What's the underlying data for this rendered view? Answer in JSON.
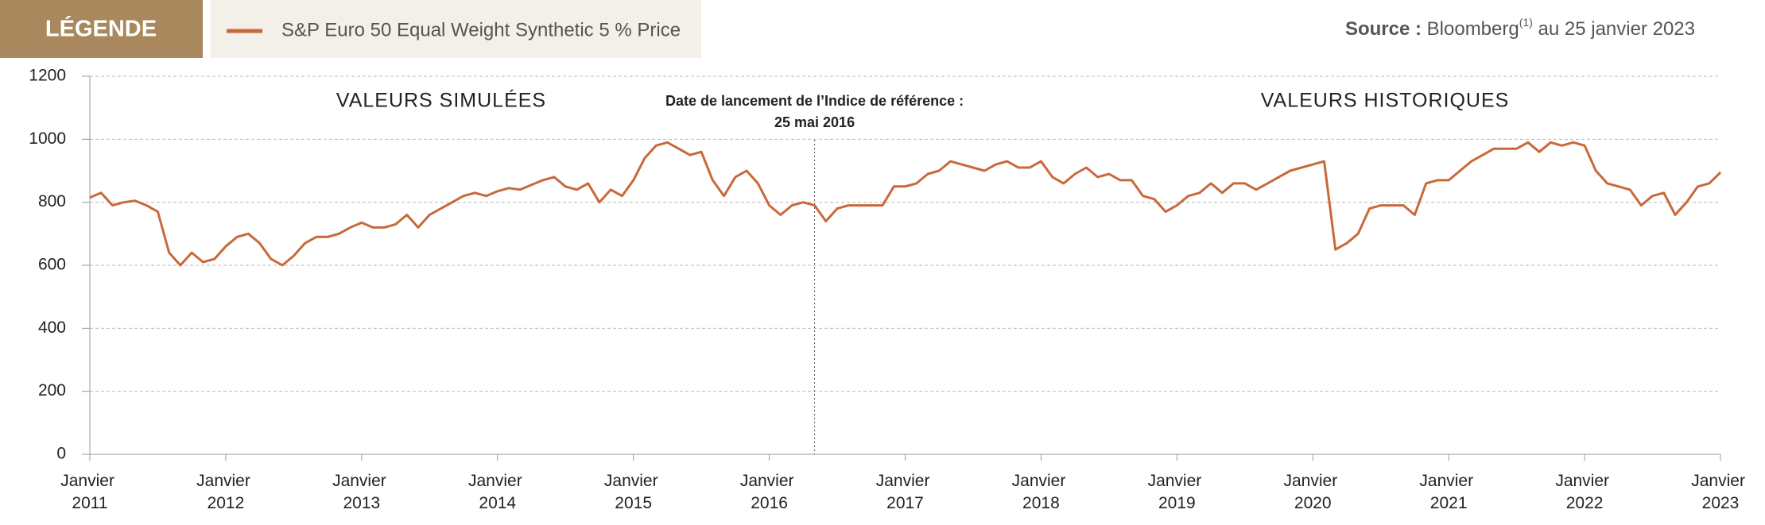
{
  "legend_label": "LÉGENDE",
  "source": {
    "label": "Source :",
    "text": "Bloomberg",
    "note": "(1)",
    "date": "au 25 janvier 2023"
  },
  "chart_data": {
    "type": "line",
    "annotations": {
      "left": "VALEURS SIMULÉES",
      "launch_1": "Date de lancement de l’Indice de référence :",
      "launch_2": "25 mai 2016",
      "right": "VALEURS HISTORIQUES"
    },
    "launch_date": "2016-05",
    "x": [
      "2011-01",
      "2011-02",
      "2011-03",
      "2011-04",
      "2011-05",
      "2011-06",
      "2011-07",
      "2011-08",
      "2011-09",
      "2011-10",
      "2011-11",
      "2011-12",
      "2012-01",
      "2012-02",
      "2012-03",
      "2012-04",
      "2012-05",
      "2012-06",
      "2012-07",
      "2012-08",
      "2012-09",
      "2012-10",
      "2012-11",
      "2012-12",
      "2013-01",
      "2013-02",
      "2013-03",
      "2013-04",
      "2013-05",
      "2013-06",
      "2013-07",
      "2013-08",
      "2013-09",
      "2013-10",
      "2013-11",
      "2013-12",
      "2014-01",
      "2014-02",
      "2014-03",
      "2014-04",
      "2014-05",
      "2014-06",
      "2014-07",
      "2014-08",
      "2014-09",
      "2014-10",
      "2014-11",
      "2014-12",
      "2015-01",
      "2015-02",
      "2015-03",
      "2015-04",
      "2015-05",
      "2015-06",
      "2015-07",
      "2015-08",
      "2015-09",
      "2015-10",
      "2015-11",
      "2015-12",
      "2016-01",
      "2016-02",
      "2016-03",
      "2016-04",
      "2016-05",
      "2016-06",
      "2016-07",
      "2016-08",
      "2016-09",
      "2016-10",
      "2016-11",
      "2016-12",
      "2017-01",
      "2017-02",
      "2017-03",
      "2017-04",
      "2017-05",
      "2017-06",
      "2017-07",
      "2017-08",
      "2017-09",
      "2017-10",
      "2017-11",
      "2017-12",
      "2018-01",
      "2018-02",
      "2018-03",
      "2018-04",
      "2018-05",
      "2018-06",
      "2018-07",
      "2018-08",
      "2018-09",
      "2018-10",
      "2018-11",
      "2018-12",
      "2019-01",
      "2019-02",
      "2019-03",
      "2019-04",
      "2019-05",
      "2019-06",
      "2019-07",
      "2019-08",
      "2019-09",
      "2019-10",
      "2019-11",
      "2019-12",
      "2020-01",
      "2020-02",
      "2020-03",
      "2020-04",
      "2020-05",
      "2020-06",
      "2020-07",
      "2020-08",
      "2020-09",
      "2020-10",
      "2020-11",
      "2020-12",
      "2021-01",
      "2021-02",
      "2021-03",
      "2021-04",
      "2021-05",
      "2021-06",
      "2021-07",
      "2021-08",
      "2021-09",
      "2021-10",
      "2021-11",
      "2021-12",
      "2022-01",
      "2022-02",
      "2022-03",
      "2022-04",
      "2022-05",
      "2022-06",
      "2022-07",
      "2022-08",
      "2022-09",
      "2022-10",
      "2022-11",
      "2022-12",
      "2023-01"
    ],
    "series": [
      {
        "name": "S&P Euro 50 Equal Weight Synthetic 5 % Price",
        "color": "#c8693a",
        "values": [
          815,
          830,
          790,
          800,
          805,
          790,
          770,
          640,
          600,
          640,
          610,
          620,
          660,
          690,
          700,
          670,
          620,
          600,
          630,
          670,
          690,
          690,
          700,
          720,
          735,
          720,
          720,
          730,
          760,
          720,
          760,
          780,
          800,
          820,
          830,
          820,
          835,
          845,
          840,
          855,
          870,
          880,
          850,
          840,
          860,
          800,
          840,
          820,
          870,
          940,
          980,
          990,
          970,
          950,
          960,
          870,
          820,
          880,
          900,
          860,
          790,
          760,
          790,
          800,
          790,
          740,
          780,
          790,
          790,
          790,
          790,
          850,
          850,
          860,
          890,
          900,
          930,
          920,
          910,
          900,
          920,
          930,
          910,
          910,
          930,
          880,
          860,
          890,
          910,
          880,
          890,
          870,
          870,
          820,
          810,
          770,
          790,
          820,
          830,
          860,
          830,
          860,
          860,
          840,
          860,
          880,
          900,
          910,
          920,
          930,
          650,
          670,
          700,
          780,
          790,
          790,
          790,
          760,
          860,
          870,
          870,
          900,
          930,
          950,
          970,
          970,
          970,
          990,
          960,
          990,
          980,
          990,
          980,
          900,
          860,
          850,
          840,
          790,
          820,
          830,
          760,
          800,
          850,
          860,
          895
        ]
      }
    ],
    "xlim": [
      "2011-01",
      "2023-01"
    ],
    "xticks": [
      {
        "value": "2011-01",
        "label": "Janvier 2011"
      },
      {
        "value": "2012-01",
        "label": "Janvier 2012"
      },
      {
        "value": "2013-01",
        "label": "Janvier 2013"
      },
      {
        "value": "2014-01",
        "label": "Janvier 2014"
      },
      {
        "value": "2015-01",
        "label": "Janvier 2015"
      },
      {
        "value": "2016-01",
        "label": "Janvier 2016"
      },
      {
        "value": "2017-01",
        "label": "Janvier 2017"
      },
      {
        "value": "2018-01",
        "label": "Janvier 2018"
      },
      {
        "value": "2019-01",
        "label": "Janvier 2019"
      },
      {
        "value": "2020-01",
        "label": "Janvier 2020"
      },
      {
        "value": "2021-01",
        "label": "Janvier 2021"
      },
      {
        "value": "2022-01",
        "label": "Janvier 2022"
      },
      {
        "value": "2023-01",
        "label": "Janvier 2023"
      }
    ],
    "ylim": [
      0,
      1200
    ],
    "yticks": [
      0,
      200,
      400,
      600,
      800,
      1000,
      1200
    ],
    "grid": true
  }
}
